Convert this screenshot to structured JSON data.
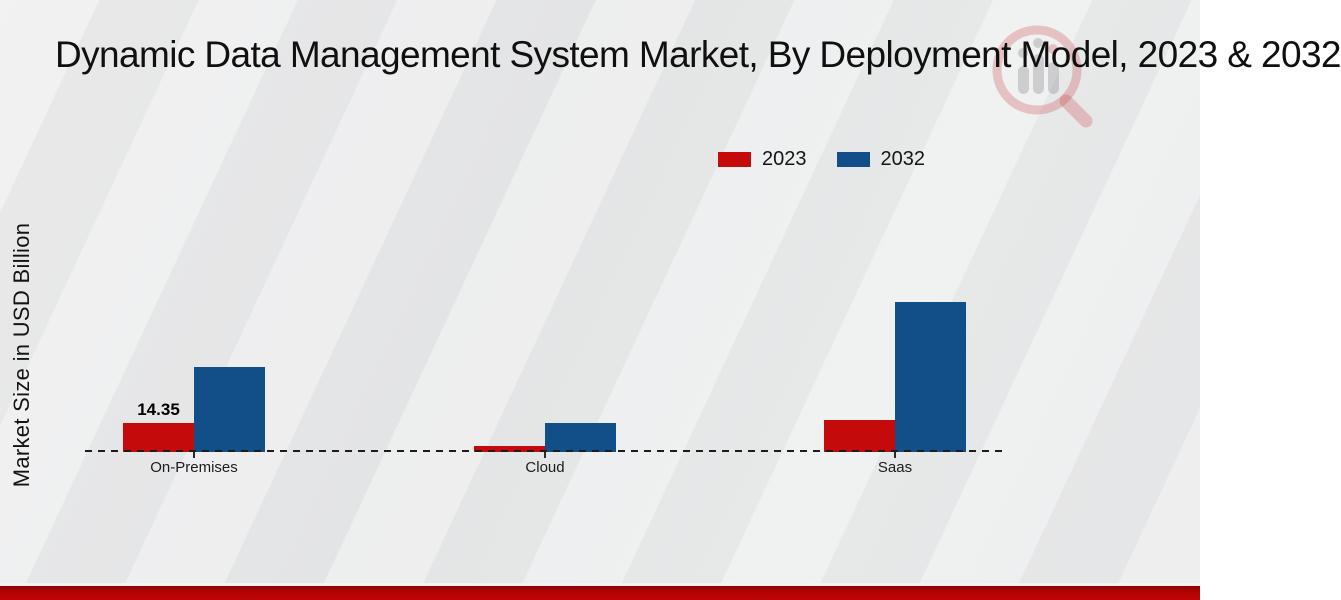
{
  "title": "Dynamic Data Management System Market, By Deployment Model, 2023 & 2032",
  "ylabel": "Market Size in USD Billion",
  "legend": [
    {
      "label": "2023",
      "color": "#c40a0a"
    },
    {
      "label": "2032",
      "color": "#124e88"
    }
  ],
  "chart_data": {
    "type": "bar",
    "title": "Dynamic Data Management System Market, By Deployment Model, 2023 & 2032",
    "categories": [
      "On-Premises",
      "Cloud",
      "Saas"
    ],
    "series": [
      {
        "name": "2023",
        "color": "#c40a0a",
        "values": [
          14.35,
          3.0,
          16.0
        ]
      },
      {
        "name": "2032",
        "color": "#124e88",
        "values": [
          42.0,
          14.3,
          74.0
        ]
      }
    ],
    "bar_labels": [
      [
        "14.35",
        "",
        ""
      ],
      [
        "",
        "",
        ""
      ]
    ],
    "xlabel": "",
    "ylabel": "Market Size in USD Billion",
    "ylim": [
      0,
      120
    ],
    "grid": false,
    "legend_position": "top-right",
    "baseline_style": "dashed"
  },
  "colors": {
    "background": "#e9eaeb",
    "footer_band": "#b30303",
    "baseline": "#1c1c1c",
    "watermark_red": "#c5393d",
    "watermark_gray": "#8f9093"
  }
}
